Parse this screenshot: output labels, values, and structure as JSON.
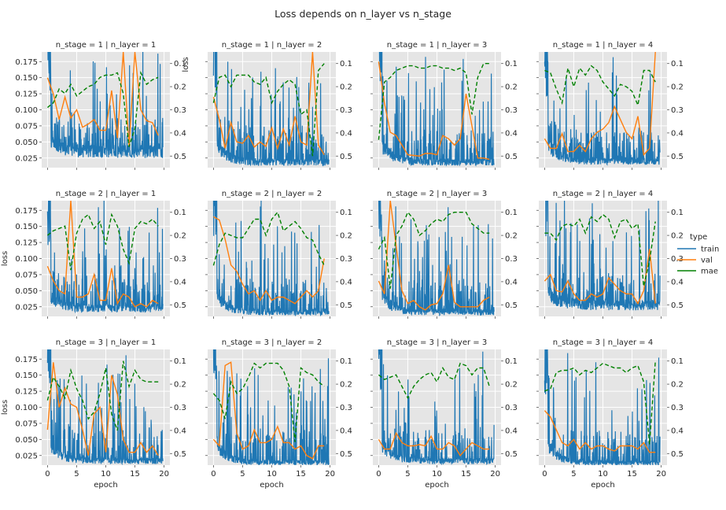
{
  "title": "Loss depends on n_layer vs n_stage",
  "legend": {
    "title": "type",
    "entries": [
      {
        "label": "train",
        "color": "#1f77b4",
        "dash": false
      },
      {
        "label": "val",
        "color": "#ff7f0e",
        "dash": false
      },
      {
        "label": "mae",
        "color": "#008000",
        "dash": true
      }
    ]
  },
  "axes": {
    "xlabel": "epoch",
    "ylabel": "loss",
    "xlim": [
      -1,
      21
    ],
    "ylim": [
      0.01,
      0.19
    ],
    "x_ticks": [
      "0",
      "5",
      "10",
      "15",
      "20"
    ],
    "x_tick_values": [
      0,
      5,
      10,
      15,
      20
    ],
    "y_ticks": [
      "0.025",
      "0.050",
      "0.075",
      "0.100",
      "0.125",
      "0.150",
      "0.175"
    ],
    "y_tick_values": [
      0.025,
      0.05,
      0.075,
      0.1,
      0.125,
      0.15,
      0.175
    ],
    "y2lim": [
      0.05,
      0.55
    ],
    "y2_inverted": true,
    "y2_ticks": [
      "0.1",
      "0.2",
      "0.3",
      "0.4",
      "0.5"
    ],
    "y2_tick_values": [
      0.1,
      0.2,
      0.3,
      0.4,
      0.5
    ],
    "background": "#e5e5e5",
    "grid": true
  },
  "chart_data": {
    "type": "line",
    "facet_rows": "n_stage",
    "facet_cols": "n_layer",
    "x": [
      0,
      1,
      2,
      3,
      4,
      5,
      6,
      7,
      8,
      9,
      10,
      11,
      12,
      13,
      14,
      15,
      16,
      17,
      18,
      19
    ],
    "panels": [
      {
        "title": "n_stage = 1 | n_layer = 1",
        "train_floor": [
          0.07,
          0.038
        ],
        "val": [
          0.15,
          0.125,
          0.085,
          0.12,
          0.087,
          0.1,
          0.073,
          0.078,
          0.085,
          0.068,
          0.068,
          0.13,
          0.056,
          0.19,
          0.043,
          0.19,
          0.1,
          0.083,
          0.08,
          0.06
        ],
        "mae": [
          0.29,
          0.27,
          0.21,
          0.23,
          0.19,
          0.24,
          0.22,
          0.2,
          0.19,
          0.16,
          0.15,
          0.15,
          0.14,
          0.23,
          0.46,
          0.38,
          0.14,
          0.19,
          0.17,
          0.16
        ]
      },
      {
        "title": "n_stage = 1 | n_layer = 2",
        "train_floor": [
          0.065,
          0.02
        ],
        "val": [
          0.12,
          0.085,
          0.04,
          0.08,
          0.05,
          0.048,
          0.06,
          0.042,
          0.05,
          0.043,
          0.072,
          0.04,
          0.07,
          0.045,
          0.09,
          0.05,
          0.045,
          0.19,
          0.045,
          0.03
        ],
        "mae": [
          0.27,
          0.16,
          0.15,
          0.2,
          0.15,
          0.15,
          0.15,
          0.18,
          0.19,
          0.16,
          0.27,
          0.22,
          0.19,
          0.17,
          0.19,
          0.32,
          0.3,
          0.5,
          0.13,
          0.1
        ]
      },
      {
        "title": "n_stage = 1 | n_layer = 3",
        "train_floor": [
          0.06,
          0.02
        ],
        "val": [
          0.175,
          0.11,
          0.065,
          0.06,
          0.045,
          0.03,
          0.029,
          0.028,
          0.032,
          0.032,
          0.03,
          0.06,
          0.055,
          0.045,
          0.055,
          0.125,
          0.075,
          0.025,
          0.025,
          0.023
        ],
        "mae": [
          0.43,
          0.18,
          0.16,
          0.13,
          0.12,
          0.11,
          0.11,
          0.12,
          0.12,
          0.11,
          0.11,
          0.12,
          0.12,
          0.13,
          0.12,
          0.14,
          0.32,
          0.16,
          0.1,
          0.1
        ]
      },
      {
        "title": "n_stage = 1 | n_layer = 4",
        "train_floor": [
          0.065,
          0.022
        ],
        "val": [
          0.055,
          0.04,
          0.04,
          0.063,
          0.035,
          0.035,
          0.045,
          0.035,
          0.055,
          0.065,
          0.07,
          0.08,
          0.105,
          0.085,
          0.065,
          0.055,
          0.09,
          0.03,
          0.04,
          0.19
        ],
        "mae": [
          0.13,
          0.14,
          0.21,
          0.27,
          0.12,
          0.2,
          0.12,
          0.15,
          0.11,
          0.13,
          0.18,
          0.21,
          0.24,
          0.19,
          0.2,
          0.22,
          0.28,
          0.13,
          0.13,
          0.18
        ]
      },
      {
        "title": "n_stage = 2 | n_layer = 1",
        "train_floor": [
          0.055,
          0.025
        ],
        "val": [
          0.088,
          0.065,
          0.05,
          0.045,
          0.19,
          0.04,
          0.04,
          0.045,
          0.075,
          0.035,
          0.035,
          0.085,
          0.03,
          0.045,
          0.04,
          0.025,
          0.03,
          0.025,
          0.035,
          0.03
        ],
        "mae": [
          0.2,
          0.18,
          0.17,
          0.16,
          0.35,
          0.19,
          0.13,
          0.11,
          0.17,
          0.14,
          0.24,
          0.11,
          0.16,
          0.26,
          0.32,
          0.17,
          0.14,
          0.15,
          0.13,
          0.16
        ]
      },
      {
        "title": "n_stage = 2 | n_layer = 2",
        "train_floor": [
          0.06,
          0.018
        ],
        "val": [
          0.165,
          0.16,
          0.13,
          0.09,
          0.08,
          0.06,
          0.045,
          0.05,
          0.035,
          0.05,
          0.035,
          0.04,
          0.04,
          0.035,
          0.03,
          0.04,
          0.05,
          0.04,
          0.05,
          0.1
        ],
        "mae": [
          0.33,
          0.24,
          0.19,
          0.2,
          0.21,
          0.21,
          0.17,
          0.13,
          0.13,
          0.2,
          0.13,
          0.1,
          0.18,
          0.16,
          0.14,
          0.17,
          0.21,
          0.22,
          0.28,
          0.33
        ]
      },
      {
        "title": "n_stage = 2 | n_layer = 3",
        "train_floor": [
          0.06,
          0.018
        ],
        "val": [
          0.065,
          0.045,
          0.19,
          0.12,
          0.05,
          0.03,
          0.035,
          0.025,
          0.02,
          0.028,
          0.03,
          0.045,
          0.09,
          0.032,
          0.025,
          0.025,
          0.025,
          0.025,
          0.035,
          0.04
        ],
        "mae": [
          0.26,
          0.21,
          0.43,
          0.2,
          0.16,
          0.1,
          0.13,
          0.2,
          0.18,
          0.15,
          0.13,
          0.14,
          0.11,
          0.1,
          0.1,
          0.1,
          0.15,
          0.17,
          0.19,
          0.19
        ]
      },
      {
        "title": "n_stage = 2 | n_layer = 4",
        "train_floor": [
          0.06,
          0.03
        ],
        "val": [
          0.065,
          0.075,
          0.05,
          0.048,
          0.065,
          0.045,
          0.035,
          0.035,
          0.045,
          0.04,
          0.045,
          0.07,
          0.06,
          0.05,
          0.045,
          0.045,
          0.03,
          0.05,
          0.115,
          0.03
        ],
        "mae": [
          0.19,
          0.19,
          0.22,
          0.16,
          0.15,
          0.16,
          0.13,
          0.19,
          0.12,
          0.14,
          0.11,
          0.13,
          0.21,
          0.14,
          0.13,
          0.17,
          0.15,
          0.42,
          0.31,
          0.14
        ]
      },
      {
        "title": "n_stage = 3 | n_layer = 1",
        "train_floor": [
          0.055,
          0.018
        ],
        "val": [
          0.065,
          0.17,
          0.1,
          0.13,
          0.105,
          0.1,
          0.065,
          0.025,
          0.09,
          0.1,
          0.03,
          0.15,
          0.12,
          0.05,
          0.03,
          0.03,
          0.045,
          0.03,
          0.04,
          0.025
        ],
        "mae": [
          0.27,
          0.17,
          0.21,
          0.26,
          0.14,
          0.22,
          0.27,
          0.35,
          0.32,
          0.24,
          0.13,
          0.33,
          0.4,
          0.1,
          0.21,
          0.14,
          0.18,
          0.19,
          0.19,
          0.19
        ]
      },
      {
        "title": "n_stage = 3 | n_layer = 2",
        "train_floor": [
          0.06,
          0.015
        ],
        "val": [
          0.05,
          0.04,
          0.165,
          0.17,
          0.06,
          0.035,
          0.04,
          0.065,
          0.045,
          0.045,
          0.05,
          0.07,
          0.045,
          0.045,
          0.035,
          0.04,
          0.025,
          0.02,
          0.04,
          0.04
        ],
        "mae": [
          0.24,
          0.27,
          0.35,
          0.19,
          0.24,
          0.22,
          0.17,
          0.11,
          0.13,
          0.11,
          0.11,
          0.11,
          0.14,
          0.21,
          0.45,
          0.13,
          0.15,
          0.16,
          0.19,
          0.21
        ]
      },
      {
        "title": "n_stage = 3 | n_layer = 3",
        "train_floor": [
          0.058,
          0.018
        ],
        "val": [
          0.05,
          0.035,
          0.035,
          0.06,
          0.045,
          0.04,
          0.04,
          0.042,
          0.04,
          0.055,
          0.035,
          0.035,
          0.045,
          0.04,
          0.025,
          0.035,
          0.045,
          0.04,
          0.035,
          0.035
        ],
        "mae": [
          0.16,
          0.18,
          0.17,
          0.16,
          0.21,
          0.26,
          0.21,
          0.18,
          0.16,
          0.15,
          0.19,
          0.13,
          0.17,
          0.18,
          0.11,
          0.12,
          0.16,
          0.13,
          0.13,
          0.21
        ]
      },
      {
        "title": "n_stage = 3 | n_layer = 4",
        "train_floor": [
          0.06,
          0.015
        ],
        "val": [
          0.095,
          0.085,
          0.065,
          0.045,
          0.04,
          0.05,
          0.035,
          0.045,
          0.035,
          0.04,
          0.04,
          0.035,
          0.032,
          0.04,
          0.04,
          0.04,
          0.035,
          0.045,
          0.03,
          0.03
        ],
        "mae": [
          0.23,
          0.22,
          0.15,
          0.14,
          0.14,
          0.13,
          0.16,
          0.14,
          0.15,
          0.13,
          0.11,
          0.12,
          0.13,
          0.13,
          0.15,
          0.13,
          0.12,
          0.19,
          0.46,
          0.1
        ]
      }
    ]
  }
}
